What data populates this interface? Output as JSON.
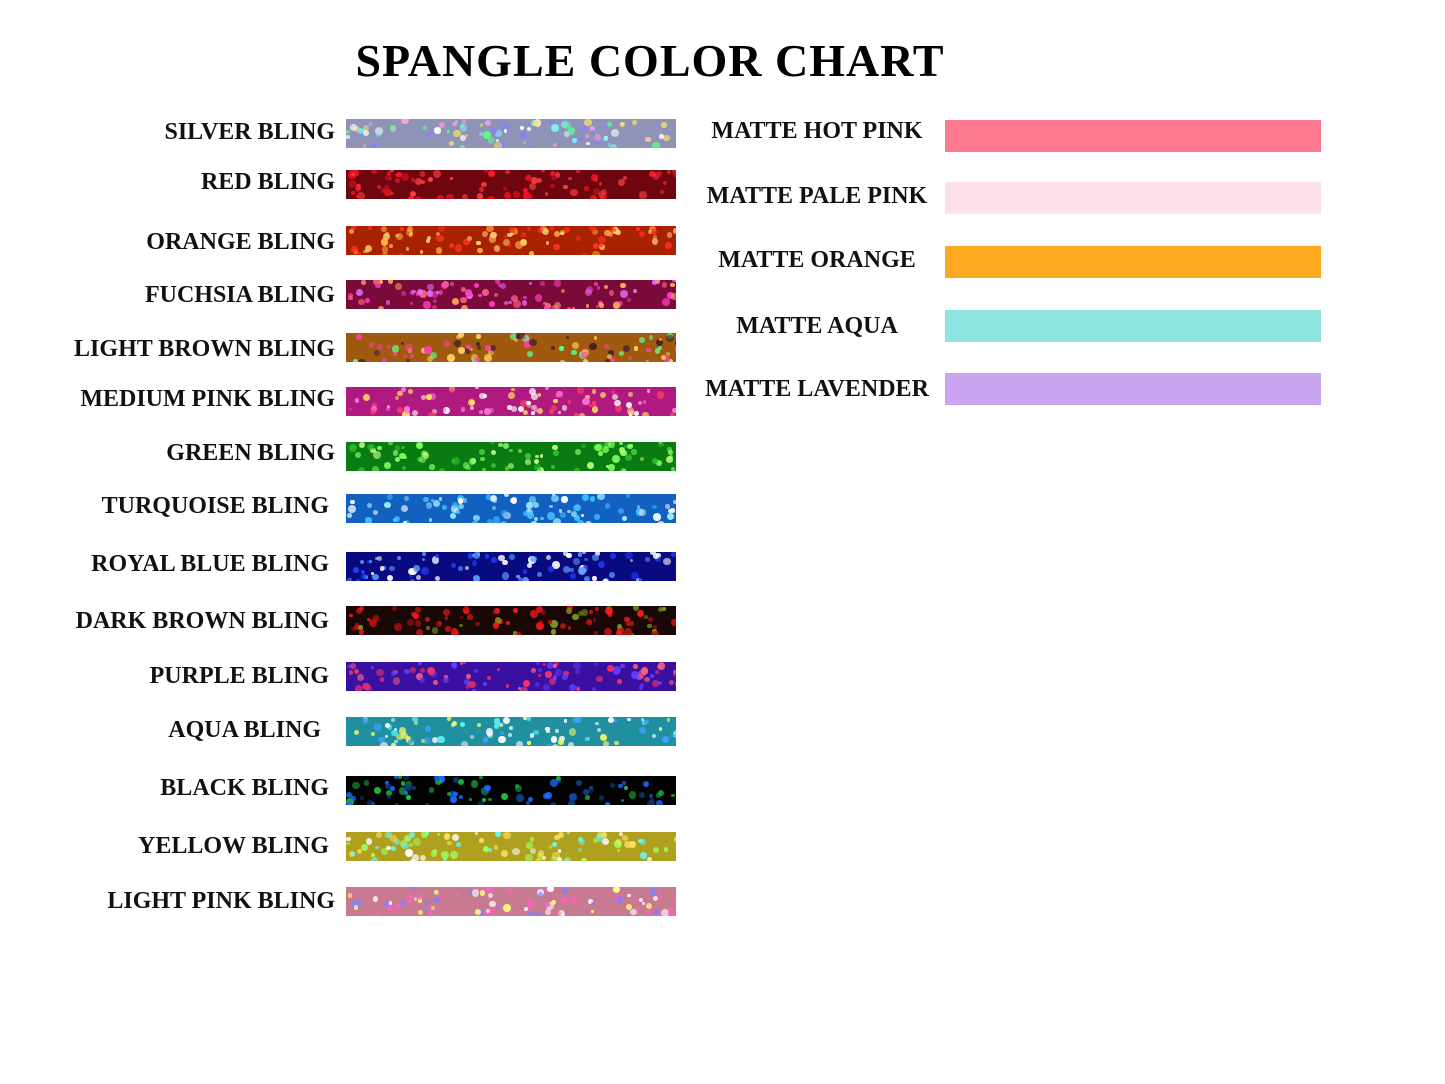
{
  "title": "SPANGLE COLOR CHART",
  "bling": [
    {
      "label": "SILVER BLING",
      "color": "#8f93b8",
      "sparkle": [
        "#ffffff",
        "#7cf0ff",
        "#ffe45c",
        "#8a7dff",
        "#5cff8a",
        "#ff9be0"
      ]
    },
    {
      "label": "RED BLING",
      "color": "#6e0610",
      "sparkle": [
        "#ff1a2a",
        "#d8101e",
        "#ff4040"
      ]
    },
    {
      "label": "ORANGE BLING",
      "color": "#a82200",
      "sparkle": [
        "#ffd070",
        "#ff3020",
        "#ffb040"
      ]
    },
    {
      "label": "FUCHSIA BLING",
      "color": "#7a0a3a",
      "sparkle": [
        "#ff40c0",
        "#ff6080",
        "#e070ff",
        "#ffb060"
      ]
    },
    {
      "label": "LIGHT BROWN BLING",
      "color": "#a05a10",
      "sparkle": [
        "#ffd060",
        "#60ff90",
        "#ff40a0",
        "#40202a"
      ]
    },
    {
      "label": "MEDIUM PINK BLING",
      "color": "#b01a80",
      "sparkle": [
        "#ffe060",
        "#ff80e0",
        "#ffffff",
        "#ff4060"
      ]
    },
    {
      "label": "GREEN BLING",
      "color": "#0a7a12",
      "sparkle": [
        "#80ff60",
        "#c0ff80",
        "#30c030"
      ]
    },
    {
      "label": "TURQUOISE BLING",
      "color": "#1260c0",
      "sparkle": [
        "#a0f0ff",
        "#ffffff",
        "#40c0ff"
      ]
    },
    {
      "label": "ROYAL BLUE BLING",
      "color": "#0a0a80",
      "sparkle": [
        "#60a0ff",
        "#ffffff",
        "#2040ff"
      ]
    },
    {
      "label": "DARK BROWN BLING",
      "color": "#1a0806",
      "sparkle": [
        "#ff1a1a",
        "#c01010",
        "#80a020"
      ]
    },
    {
      "label": "PURPLE BLING",
      "color": "#3a10a0",
      "sparkle": [
        "#ff3060",
        "#ff6080",
        "#6040ff"
      ]
    },
    {
      "label": "AQUA BLING",
      "color": "#2090a0",
      "sparkle": [
        "#60ffff",
        "#ffffff",
        "#40a0ff",
        "#ffff60"
      ]
    },
    {
      "label": "BLACK BLING",
      "color": "#020202",
      "sparkle": [
        "#1a6aff",
        "#20c040",
        "#104080"
      ]
    },
    {
      "label": "YELLOW BLING",
      "color": "#b0a020",
      "sparkle": [
        "#ffe060",
        "#60ffff",
        "#a0ff60",
        "#ffffff"
      ]
    },
    {
      "label": "LIGHT PINK BLING",
      "color": "#c87a90",
      "sparkle": [
        "#ffff80",
        "#ff60c0",
        "#ffffff",
        "#8080ff"
      ]
    }
  ],
  "matte": [
    {
      "label": "MATTE HOT PINK",
      "color": "#ff7a91"
    },
    {
      "label": "MATTE PALE PINK",
      "color": "#fde0e8"
    },
    {
      "label": "MATTE ORANGE",
      "color": "#fdaa22"
    },
    {
      "label": "MATTE AQUA",
      "color": "#8ee2df"
    },
    {
      "label": "MATTE LAVENDER",
      "color": "#cba4f2"
    }
  ]
}
